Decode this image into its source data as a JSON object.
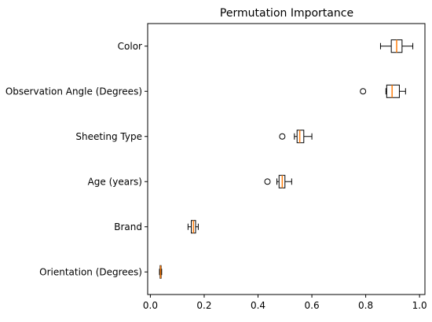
{
  "chart_data": {
    "type": "boxplot",
    "orientation": "horizontal",
    "title": "Permutation Importance",
    "xlabel": "",
    "ylabel": "",
    "xlim": [
      -0.01,
      1.02
    ],
    "xticks": [
      0.0,
      0.2,
      0.4,
      0.6,
      0.8,
      1.0
    ],
    "xtick_labels": [
      "0.0",
      "0.2",
      "0.4",
      "0.6",
      "0.8",
      "1.0"
    ],
    "grid": false,
    "categories": [
      "Color",
      "Observation Angle (Degrees)",
      "Sheeting Type",
      "Age (years)",
      "Brand",
      "Orientation (Degrees)"
    ],
    "series": [
      {
        "category": "Color",
        "whisker_low": 0.855,
        "q1": 0.895,
        "median": 0.915,
        "q3": 0.935,
        "whisker_high": 0.975,
        "outliers": []
      },
      {
        "category": "Observation Angle (Degrees)",
        "whisker_low": 0.875,
        "q1": 0.878,
        "median": 0.898,
        "q3": 0.925,
        "whisker_high": 0.948,
        "outliers": [
          0.79
        ]
      },
      {
        "category": "Sheeting Type",
        "whisker_low": 0.535,
        "q1": 0.545,
        "median": 0.555,
        "q3": 0.57,
        "whisker_high": 0.6,
        "outliers": [
          0.49
        ]
      },
      {
        "category": "Age (years)",
        "whisker_low": 0.47,
        "q1": 0.478,
        "median": 0.49,
        "q3": 0.5,
        "whisker_high": 0.525,
        "outliers": [
          0.435
        ]
      },
      {
        "category": "Brand",
        "whisker_low": 0.14,
        "q1": 0.152,
        "median": 0.16,
        "q3": 0.168,
        "whisker_high": 0.178,
        "outliers": []
      },
      {
        "category": "Orientation (Degrees)",
        "whisker_low": 0.034,
        "q1": 0.036,
        "median": 0.038,
        "q3": 0.04,
        "whisker_high": 0.042,
        "outliers": []
      }
    ],
    "colors": {
      "box_edge": "#000000",
      "median": "#ff7f0e",
      "whisker": "#000000",
      "outlier_edge": "#000000",
      "axes": "#000000",
      "background": "#ffffff"
    }
  }
}
